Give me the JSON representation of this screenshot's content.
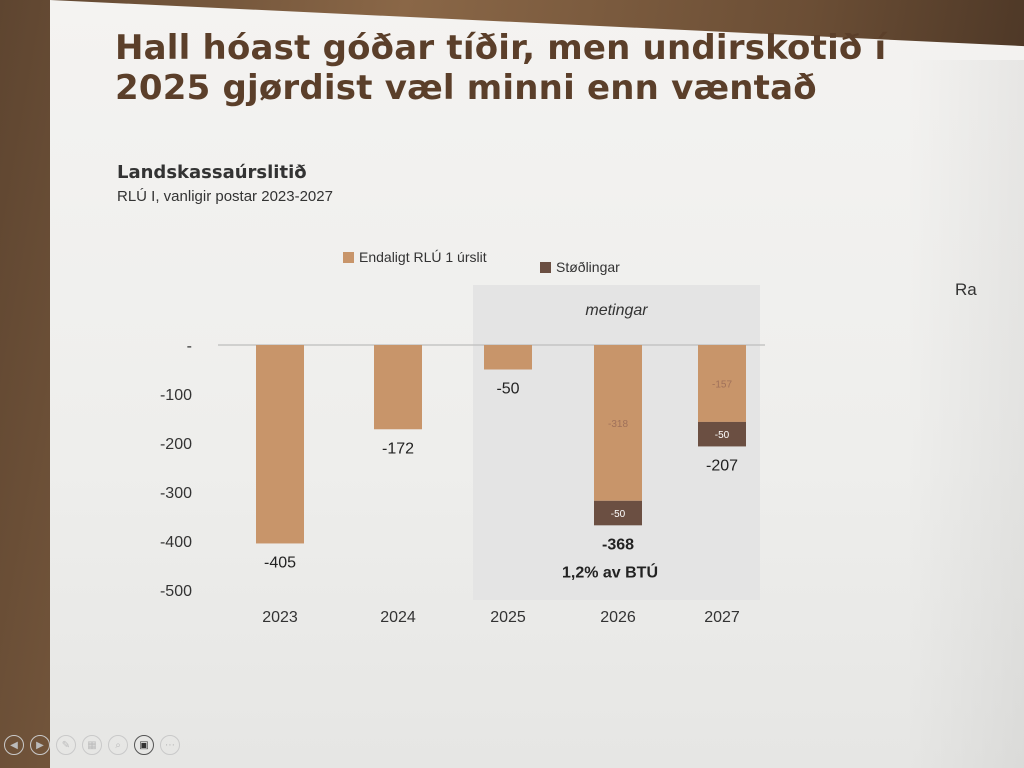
{
  "slide": {
    "title": "Hall hóast góðar tíðir, men undirskotið í 2025 gjørdist væl minni enn væntað",
    "subtitle": "Landskassaúrslitið",
    "subsubtitle": "RLÚ I, vanligir postar 2023-2027",
    "right_edge_text": "Ra"
  },
  "chart_data": {
    "type": "bar",
    "stacked": true,
    "categories": [
      "2023",
      "2024",
      "2025",
      "2026",
      "2027"
    ],
    "series": [
      {
        "name": "Endaligt RLÚ 1 úrslit",
        "values": [
          -405,
          -172,
          -50,
          -318,
          -157
        ],
        "color": "#c8956a"
      },
      {
        "name": "Støðlingar",
        "values": [
          0,
          0,
          0,
          -50,
          -50
        ],
        "color": "#6b4f42"
      }
    ],
    "total_labels": [
      "-405",
      "-172",
      "-50",
      "-368",
      "-207"
    ],
    "segment_labels": {
      "endaligt": [
        "",
        "",
        "",
        "-318",
        "-157"
      ],
      "stodlingar": [
        "",
        "",
        "",
        "-50",
        "-50"
      ]
    },
    "ylim": [
      -500,
      0
    ],
    "yticks": [
      0,
      -100,
      -200,
      -300,
      -400,
      -500
    ],
    "ytick_labels": [
      "-",
      "-100",
      "-200",
      "-300",
      "-400",
      "-500"
    ],
    "forecast_label": "metingar",
    "forecast_categories": [
      "2025",
      "2026",
      "2027"
    ],
    "annotation": "1,2% av BTÚ",
    "annotation_category": "2026",
    "legend_position": "top",
    "grid": false
  },
  "toolbar": {
    "icons": [
      "prev-icon",
      "next-icon",
      "pen-icon",
      "slides-icon",
      "zoom-icon",
      "camera-icon",
      "more-icon"
    ],
    "glyphs": [
      "◀",
      "▶",
      "✎",
      "▦",
      "⌕",
      "▣",
      "⋯"
    ]
  }
}
